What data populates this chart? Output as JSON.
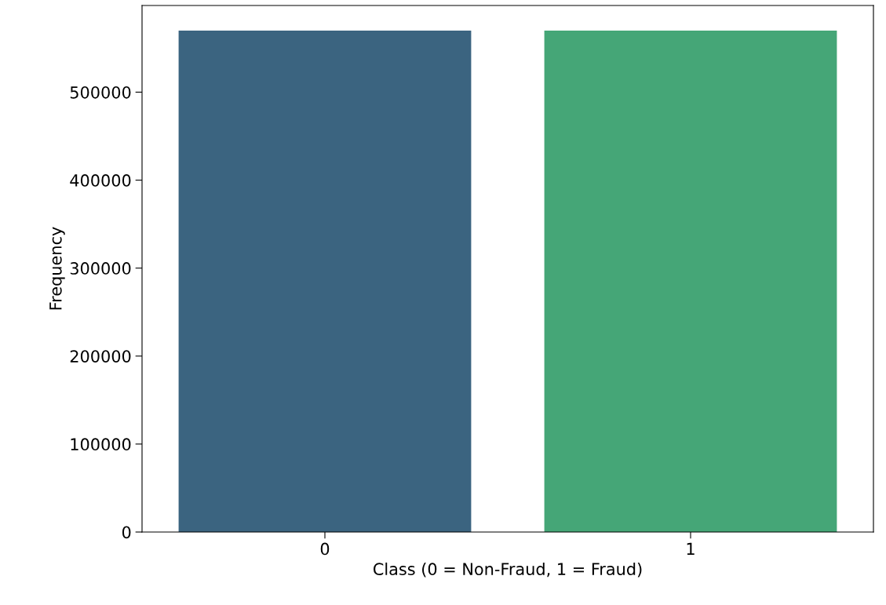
{
  "chart_data": {
    "type": "bar",
    "xlabel": "Class (0 = Non-Fraud, 1 = Fraud)",
    "ylabel": "Frequency",
    "categories": [
      "0",
      "1"
    ],
    "values": [
      570000,
      570000
    ],
    "colors": [
      "#3b6480",
      "#45a677"
    ],
    "ylim": [
      0,
      598500
    ],
    "yticks": [
      0,
      100000,
      200000,
      300000,
      400000,
      500000
    ],
    "grid": false,
    "legend": false
  }
}
